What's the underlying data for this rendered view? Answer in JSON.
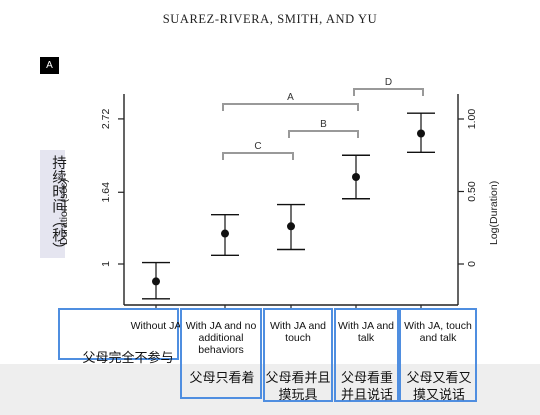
{
  "header": {
    "running_head": "SUAREZ-RIVERA, SMITH, AND YU"
  },
  "panel": {
    "label": "A"
  },
  "chart_data": {
    "type": "scatter",
    "ylabel": "Duration (sec)",
    "ylabel_annotation": "持续时间（秒）",
    "y2label": "Log(Duration)",
    "yticks": [
      1,
      1.64,
      2.72
    ],
    "yticks_labels": [
      "1",
      "1.64",
      "2.72"
    ],
    "y2ticks": [
      0,
      0.5,
      1.0
    ],
    "y2ticks_labels": [
      "0",
      "0.50",
      "1.00"
    ],
    "y2lim": [
      -0.24,
      1.2
    ],
    "grid": false,
    "categories": [
      {
        "label": "Without JA",
        "annotation": "父母完全不参与"
      },
      {
        "label": "With JA and no additional behaviors",
        "annotation": "父母只看着"
      },
      {
        "label": "With JA and touch",
        "annotation": "父母看并且摸玩具"
      },
      {
        "label": "With JA and talk",
        "annotation": "父母看重并且说话"
      },
      {
        "label": "With JA, touch and talk",
        "annotation": "父母又看又摸又说话"
      }
    ],
    "series": [
      {
        "log_mean": [
          -0.12,
          0.21,
          0.26,
          0.6,
          0.9
        ],
        "log_ci_low": [
          -0.24,
          0.06,
          0.1,
          0.45,
          0.77
        ],
        "log_ci_high": [
          0.01,
          0.34,
          0.41,
          0.75,
          1.04
        ]
      }
    ],
    "brackets": [
      {
        "label": "A",
        "from": 1,
        "to": 3
      },
      {
        "label": "B",
        "from": 2,
        "to": 3
      },
      {
        "label": "C",
        "from": 1,
        "to": 2
      },
      {
        "label": "D",
        "from": 3,
        "to": 4
      }
    ]
  }
}
